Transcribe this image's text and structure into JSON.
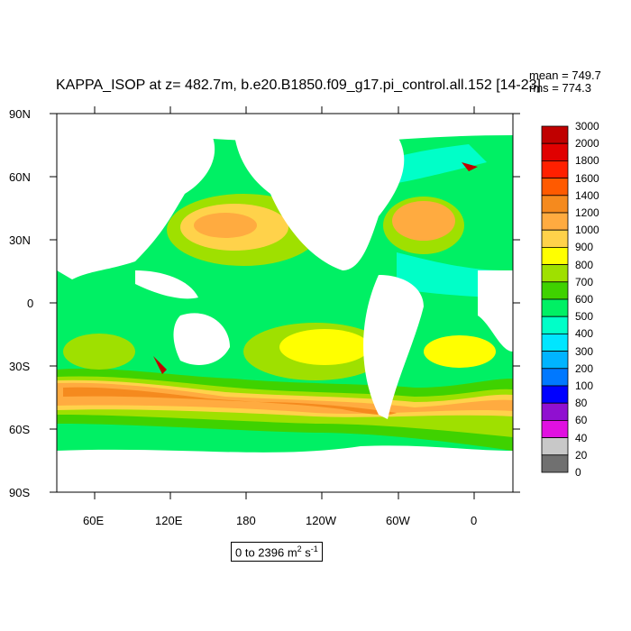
{
  "title": "KAPPA_ISOP at z= 482.7m, b.e20.B1850.f09_g17.pi_control.all.152 [14-23]",
  "stats": {
    "mean": "mean = 749.7",
    "rms": "rms = 774.3"
  },
  "range_label": {
    "prefix": "0 to 2396 m",
    "sup1": "2",
    "mid": " s",
    "sup2": "-1"
  },
  "lat_labels": [
    "90N",
    "60N",
    "30N",
    "0",
    "30S",
    "60S",
    "90S"
  ],
  "lon_labels": [
    "60E",
    "120E",
    "180",
    "120W",
    "60W",
    "0"
  ],
  "colorbar": {
    "labels": [
      "3000",
      "2000",
      "1800",
      "1600",
      "1400",
      "1200",
      "1000",
      "900",
      "800",
      "700",
      "600",
      "500",
      "400",
      "300",
      "200",
      "100",
      "80",
      "60",
      "40",
      "20",
      "0"
    ],
    "colors": [
      "#c00000",
      "#e00000",
      "#ff2000",
      "#ff5a00",
      "#f58a1e",
      "#ffab40",
      "#ffd24a",
      "#ffff00",
      "#9fe000",
      "#3fd200",
      "#00f064",
      "#00ffc8",
      "#00e6ff",
      "#00b4ff",
      "#0078ff",
      "#0000ff",
      "#9010d0",
      "#e010e0",
      "#c8c8c8",
      "#707070"
    ]
  },
  "palette": {
    "ocean_base": "#00f064",
    "land": "#ffffff",
    "c700": "#3fd200",
    "c800": "#9fe000",
    "c900": "#ffff00",
    "c1000": "#ffd24a",
    "c1200": "#ffab40",
    "c1400": "#f58a1e",
    "c500": "#00ffc8",
    "c400": "#00e6ff",
    "c_red": "#c00000"
  }
}
